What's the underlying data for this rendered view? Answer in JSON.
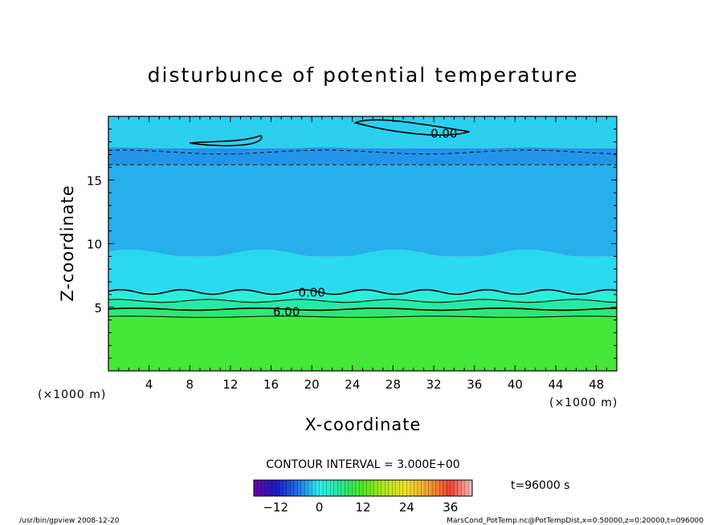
{
  "chart_data": {
    "type": "heatmap",
    "title": "disturbunce of potential temperature",
    "xlabel": "X-coordinate",
    "ylabel": "Z-coordinate",
    "x_unit": "(×1000 m)",
    "y_unit": "(×1000 m)",
    "xlim": [
      0,
      50
    ],
    "ylim": [
      0,
      20
    ],
    "x_ticks": [
      4,
      8,
      12,
      16,
      20,
      24,
      28,
      32,
      36,
      40,
      44,
      48
    ],
    "y_ticks": [
      5,
      10,
      15
    ],
    "z_layers": [
      {
        "z_bottom": 0,
        "z_top": 4.2,
        "value": 10.5
      },
      {
        "z_bottom": 4.2,
        "z_top": 4.9,
        "value": 7.5
      },
      {
        "z_bottom": 4.9,
        "z_top": 5.6,
        "value": 4.5
      },
      {
        "z_bottom": 5.6,
        "z_top": 6.2,
        "value": 1.5
      },
      {
        "z_bottom": 6.2,
        "z_top": 9.0,
        "value": -1.5
      },
      {
        "z_bottom": 9.0,
        "z_top": 16.2,
        "value": -3.0
      },
      {
        "z_bottom": 16.2,
        "z_top": 17.5,
        "value": -4.5
      },
      {
        "z_bottom": 17.5,
        "z_top": 20,
        "value": -1.5
      }
    ],
    "contour_labels": [
      {
        "text": "0.00",
        "x": 33,
        "z": 18.7
      },
      {
        "text": "0.00",
        "x": 20,
        "z": 6.2
      },
      {
        "text": "6.00",
        "x": 17.5,
        "z": 4.7
      }
    ],
    "contour_interval": "CONTOUR INTERVAL = 3.000E+00",
    "colorbar": {
      "range": [
        -18,
        42
      ],
      "ticks": [
        -12,
        0,
        12,
        24,
        36
      ],
      "stops": [
        {
          "value": -18,
          "color": "#6a0aa0"
        },
        {
          "value": -12,
          "color": "#1818c8"
        },
        {
          "value": -6,
          "color": "#1e6ee6"
        },
        {
          "value": 0,
          "color": "#2ff0f0"
        },
        {
          "value": 6,
          "color": "#23e890"
        },
        {
          "value": 12,
          "color": "#4fe81a"
        },
        {
          "value": 18,
          "color": "#b4e81e"
        },
        {
          "value": 24,
          "color": "#f0e028"
        },
        {
          "value": 30,
          "color": "#f0a030"
        },
        {
          "value": 36,
          "color": "#f04030"
        },
        {
          "value": 42,
          "color": "#f4c4c4"
        }
      ]
    },
    "time_label": "t=96000 s"
  },
  "footer": {
    "left": "/usr/bin/gpview   2008-12-20",
    "right": "MarsCond_PotTemp.nc@PotTempDist,x=0:50000,z=0:20000,t=096000"
  }
}
